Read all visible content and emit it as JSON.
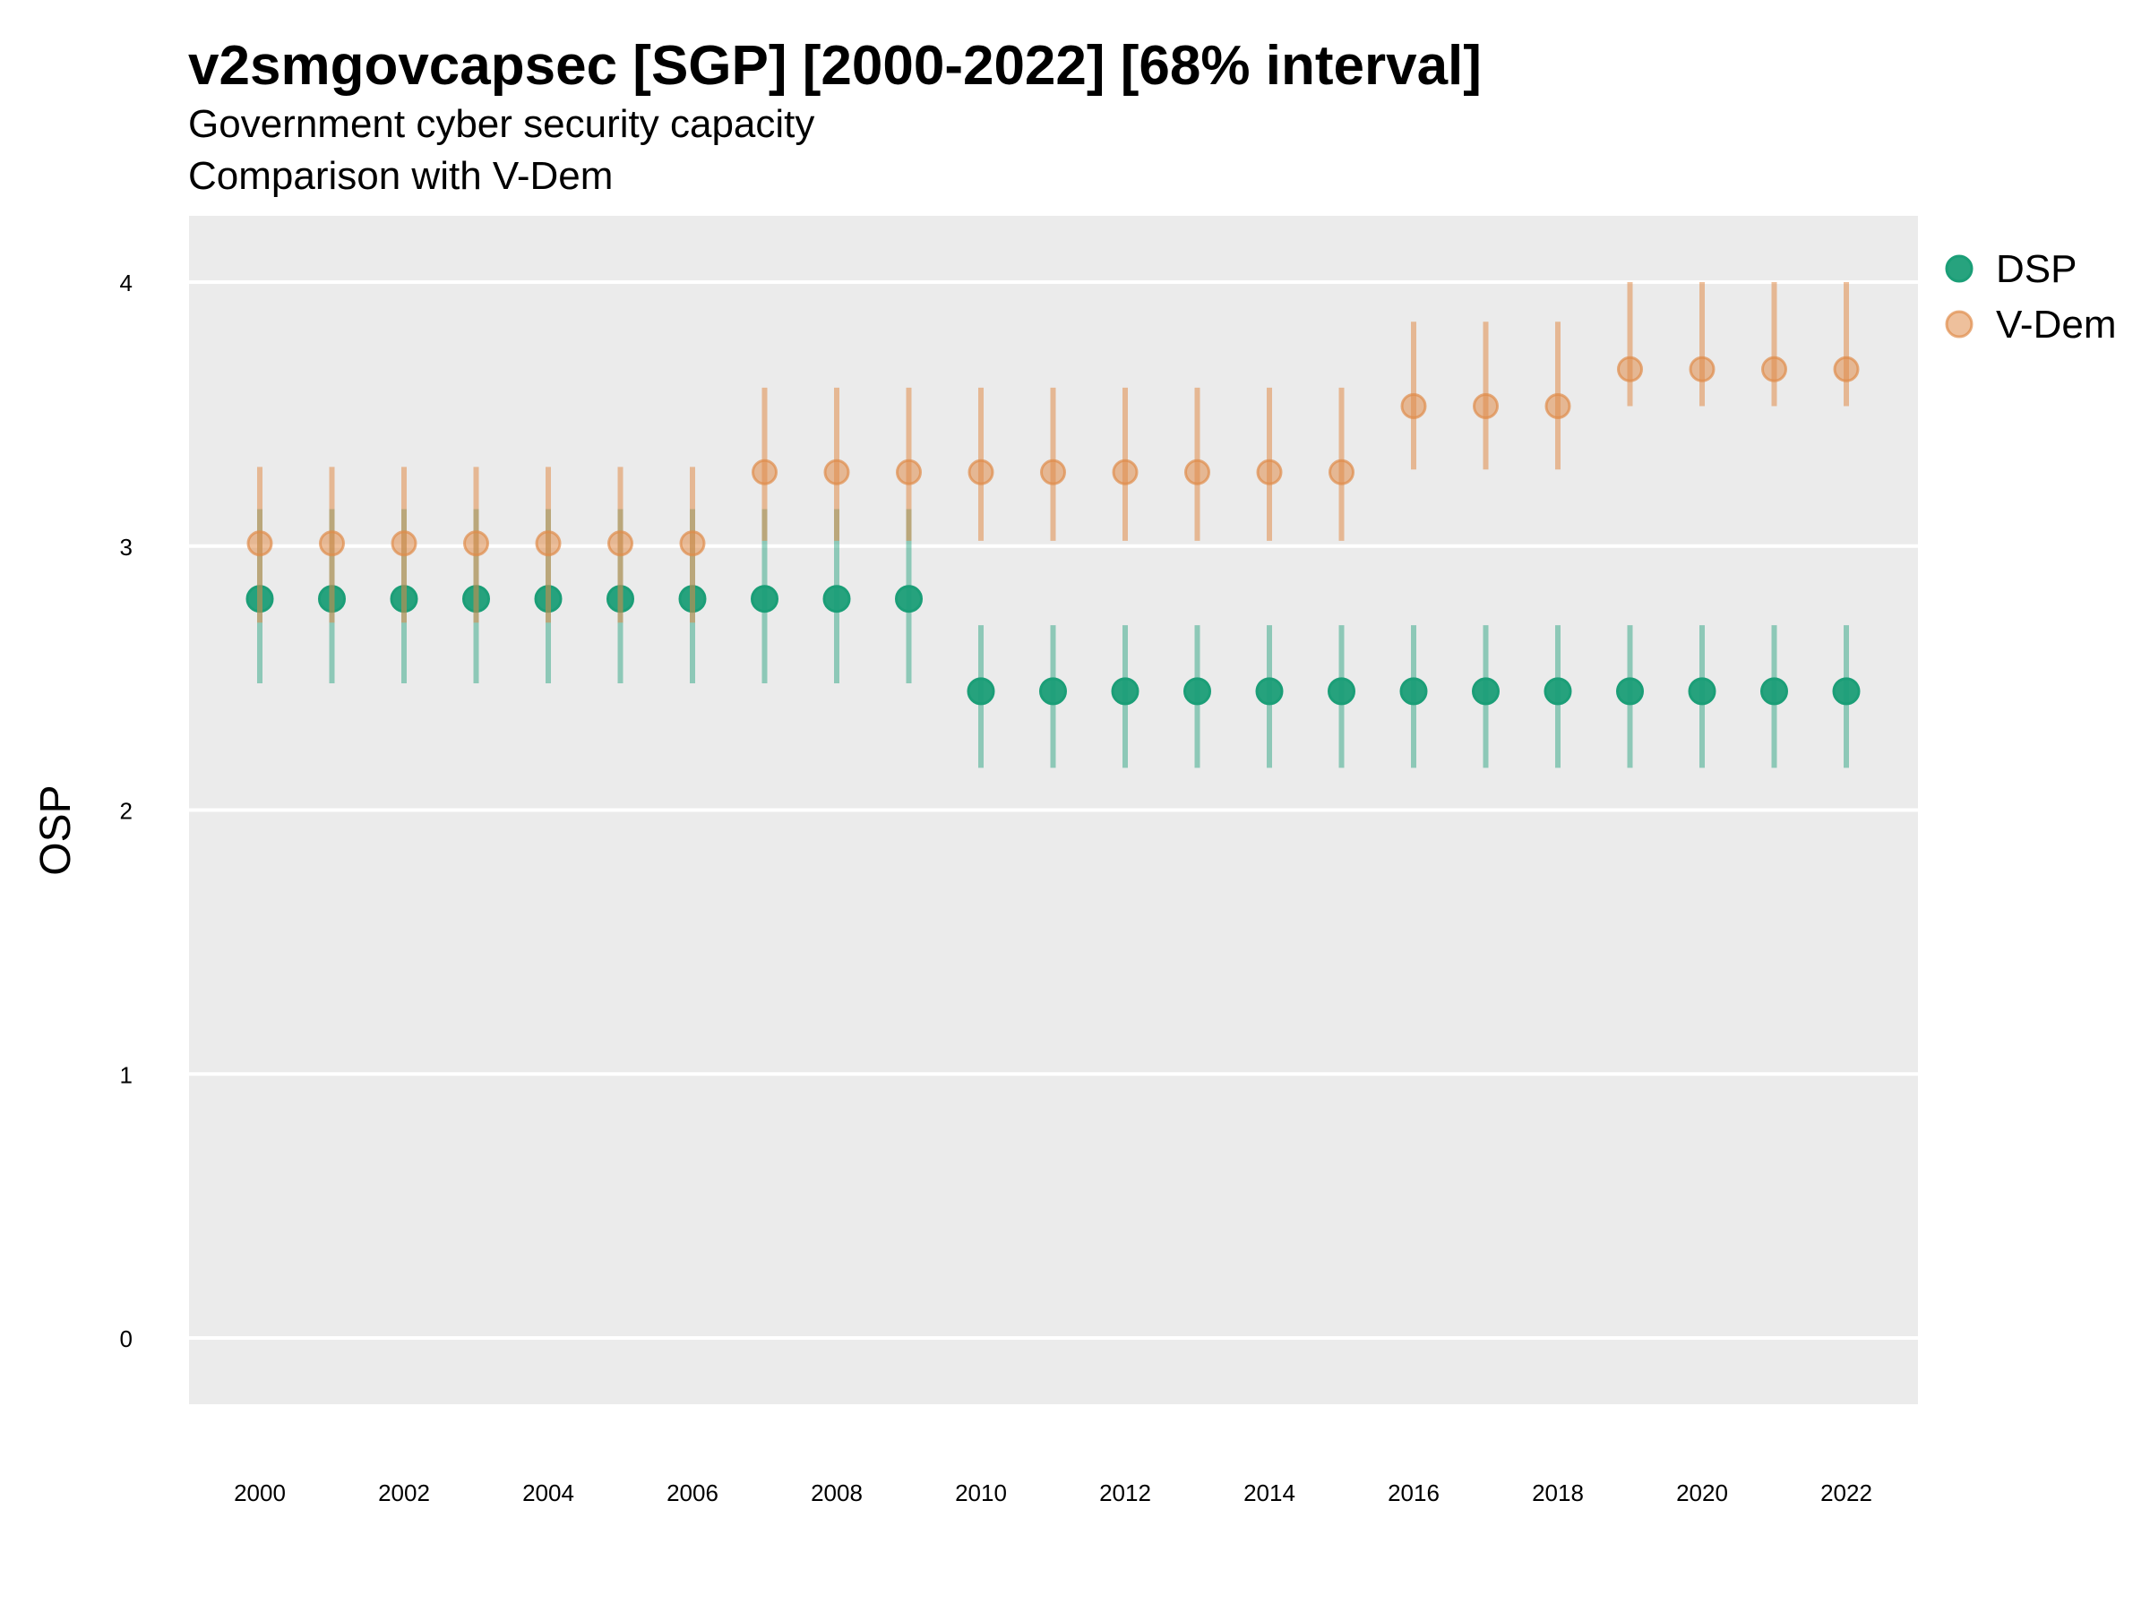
{
  "title": "v2smgovcapsec [SGP] [2000-2022] [68% interval]",
  "subtitle1": "Government cyber security capacity",
  "subtitle2": "Comparison with V-Dem",
  "chart_data": {
    "type": "scatter",
    "title": "v2smgovcapsec [SGP] [2000-2022] [68% interval]",
    "subtitle": [
      "Government cyber security capacity",
      "Comparison with V-Dem"
    ],
    "xlabel": "",
    "ylabel": "OSP",
    "ylim": [
      -0.25,
      4.25
    ],
    "xlim": [
      1999,
      2023
    ],
    "yticks": [
      0,
      1,
      2,
      3,
      4
    ],
    "xticks": [
      2000,
      2002,
      2004,
      2006,
      2008,
      2010,
      2012,
      2014,
      2016,
      2018,
      2020,
      2022
    ],
    "grid": true,
    "legend_position": "right",
    "x": [
      2000,
      2001,
      2002,
      2003,
      2004,
      2005,
      2006,
      2007,
      2008,
      2009,
      2010,
      2011,
      2012,
      2013,
      2014,
      2015,
      2016,
      2017,
      2018,
      2019,
      2020,
      2021,
      2022
    ],
    "series": [
      {
        "name": "DSP",
        "color": "#1b9e77",
        "values": [
          2.8,
          2.8,
          2.8,
          2.8,
          2.8,
          2.8,
          2.8,
          2.8,
          2.8,
          2.8,
          2.45,
          2.45,
          2.45,
          2.45,
          2.45,
          2.45,
          2.45,
          2.45,
          2.45,
          2.45,
          2.45,
          2.45,
          2.45
        ],
        "lower": [
          2.48,
          2.48,
          2.48,
          2.48,
          2.48,
          2.48,
          2.48,
          2.48,
          2.48,
          2.48,
          2.16,
          2.16,
          2.16,
          2.16,
          2.16,
          2.16,
          2.16,
          2.16,
          2.16,
          2.16,
          2.16,
          2.16,
          2.16
        ],
        "upper": [
          3.14,
          3.14,
          3.14,
          3.14,
          3.14,
          3.14,
          3.14,
          3.14,
          3.14,
          3.14,
          2.7,
          2.7,
          2.7,
          2.7,
          2.7,
          2.7,
          2.7,
          2.7,
          2.7,
          2.7,
          2.7,
          2.7,
          2.7
        ]
      },
      {
        "name": "V-Dem",
        "color": "#e08c4a",
        "values": [
          3.01,
          3.01,
          3.01,
          3.01,
          3.01,
          3.01,
          3.01,
          3.28,
          3.28,
          3.28,
          3.28,
          3.28,
          3.28,
          3.28,
          3.28,
          3.28,
          3.53,
          3.53,
          3.53,
          3.67,
          3.67,
          3.67,
          3.67
        ],
        "lower": [
          2.71,
          2.71,
          2.71,
          2.71,
          2.71,
          2.71,
          2.71,
          3.02,
          3.02,
          3.02,
          3.02,
          3.02,
          3.02,
          3.02,
          3.02,
          3.02,
          3.29,
          3.29,
          3.29,
          3.53,
          3.53,
          3.53,
          3.53
        ],
        "upper": [
          3.3,
          3.3,
          3.3,
          3.3,
          3.3,
          3.3,
          3.3,
          3.6,
          3.6,
          3.6,
          3.6,
          3.6,
          3.6,
          3.6,
          3.6,
          3.6,
          3.85,
          3.85,
          3.85,
          4.0,
          4.0,
          4.0,
          4.0
        ]
      }
    ]
  }
}
